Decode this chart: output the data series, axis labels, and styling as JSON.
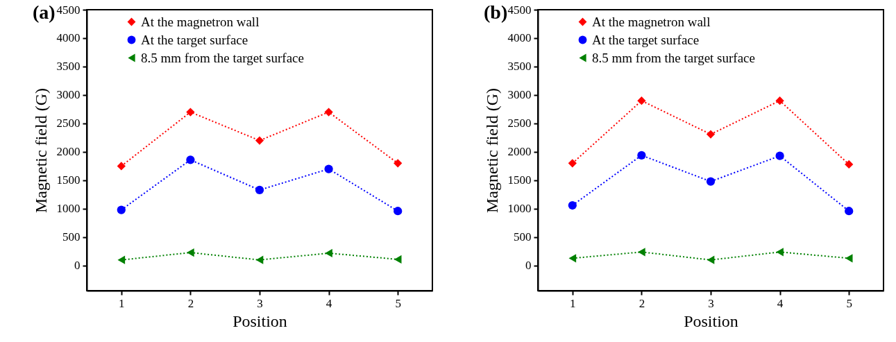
{
  "chart_data": [
    {
      "type": "line",
      "title": "(a)",
      "xlabel": "Position",
      "ylabel": "Magnetic field (G)",
      "x": [
        1,
        2,
        3,
        4,
        5
      ],
      "xlim": [
        0.5,
        5.5
      ],
      "xticks": [
        1,
        2,
        3,
        4,
        5
      ],
      "ylim": [
        -440,
        4500
      ],
      "yticks": [
        0,
        500,
        1000,
        1500,
        2000,
        2500,
        3000,
        3500,
        4000,
        4500
      ],
      "grid": false,
      "legend": "top",
      "line_style": "dotted",
      "series": [
        {
          "name": "At the magnetron wall",
          "color": "#ff0000",
          "marker": "diamond",
          "values": [
            1750,
            2700,
            2200,
            2700,
            1800
          ]
        },
        {
          "name": "At the target surface",
          "color": "#0000ff",
          "marker": "circle",
          "values": [
            980,
            1860,
            1330,
            1700,
            960
          ]
        },
        {
          "name": "8.5 mm from the target surface",
          "color": "#008000",
          "marker": "triangle",
          "values": [
            100,
            230,
            100,
            220,
            110
          ]
        }
      ]
    },
    {
      "type": "line",
      "title": "(b)",
      "xlabel": "Position",
      "ylabel": "Magnetic field (G)",
      "x": [
        1,
        2,
        3,
        4,
        5
      ],
      "xlim": [
        0.5,
        5.5
      ],
      "xticks": [
        1,
        2,
        3,
        4,
        5
      ],
      "ylim": [
        -440,
        4500
      ],
      "yticks": [
        0,
        500,
        1000,
        1500,
        2000,
        2500,
        3000,
        3500,
        4000,
        4500
      ],
      "grid": false,
      "legend": "top",
      "line_style": "dotted",
      "series": [
        {
          "name": "At the magnetron wall",
          "color": "#ff0000",
          "marker": "diamond",
          "values": [
            1800,
            2900,
            2310,
            2900,
            1780
          ]
        },
        {
          "name": "At the target surface",
          "color": "#0000ff",
          "marker": "circle",
          "values": [
            1060,
            1940,
            1480,
            1930,
            960
          ]
        },
        {
          "name": "8.5 mm from the target surface",
          "color": "#008000",
          "marker": "triangle",
          "values": [
            130,
            240,
            100,
            240,
            130
          ]
        }
      ]
    }
  ]
}
